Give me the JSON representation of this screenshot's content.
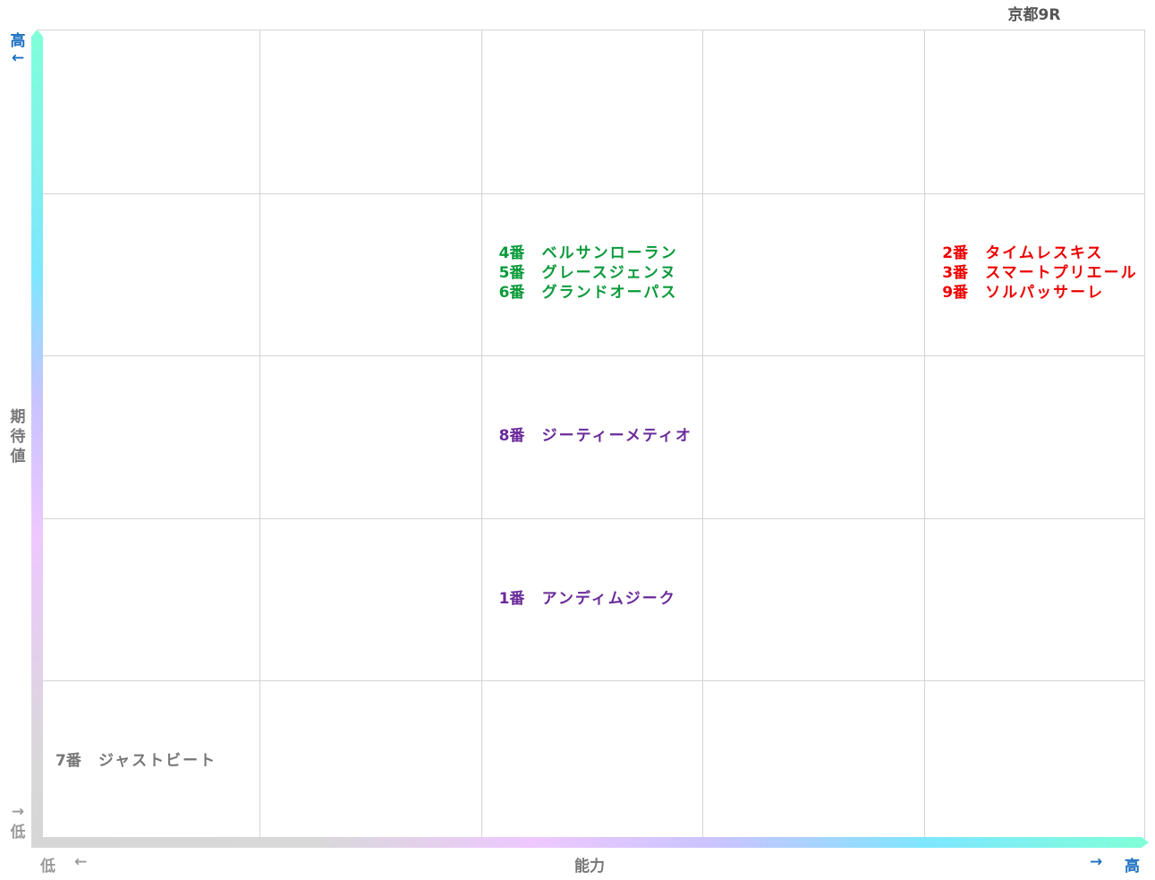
{
  "title": "京都9R",
  "axes": {
    "y_label": "期待値",
    "x_label": "能力",
    "high": "高",
    "low": "低",
    "y_high_arrow": "←",
    "y_low_arrow": "→",
    "x_low_arrow": "←",
    "x_high_arrow": "→",
    "high_color": "#1a6fc0",
    "low_color": "#999999"
  },
  "grid": {
    "columns": 5,
    "rows": 5
  },
  "groups": [
    {
      "ability": 3,
      "expectation": 4,
      "color": "#0a9a3a",
      "entries": [
        {
          "num": "4番",
          "name": "ベルサンローラン"
        },
        {
          "num": "5番",
          "name": "グレースジェンヌ"
        },
        {
          "num": "6番",
          "name": "グランドオーパス"
        }
      ]
    },
    {
      "ability": 5,
      "expectation": 4,
      "color": "#ee0000",
      "entries": [
        {
          "num": "2番",
          "name": "タイムレスキス"
        },
        {
          "num": "3番",
          "name": "スマートプリエール"
        },
        {
          "num": "9番",
          "name": "ソルパッサーレ"
        }
      ]
    },
    {
      "ability": 3,
      "expectation": 3,
      "color": "#6a2a9a",
      "entries": [
        {
          "num": "8番",
          "name": "ジーティーメティオ"
        }
      ]
    },
    {
      "ability": 3,
      "expectation": 2,
      "color": "#6a2a9a",
      "entries": [
        {
          "num": "1番",
          "name": "アンディムジーク"
        }
      ]
    },
    {
      "ability": 1,
      "expectation": 1,
      "color": "#777777",
      "entries": [
        {
          "num": "7番",
          "name": "ジャストビート"
        }
      ]
    }
  ]
}
